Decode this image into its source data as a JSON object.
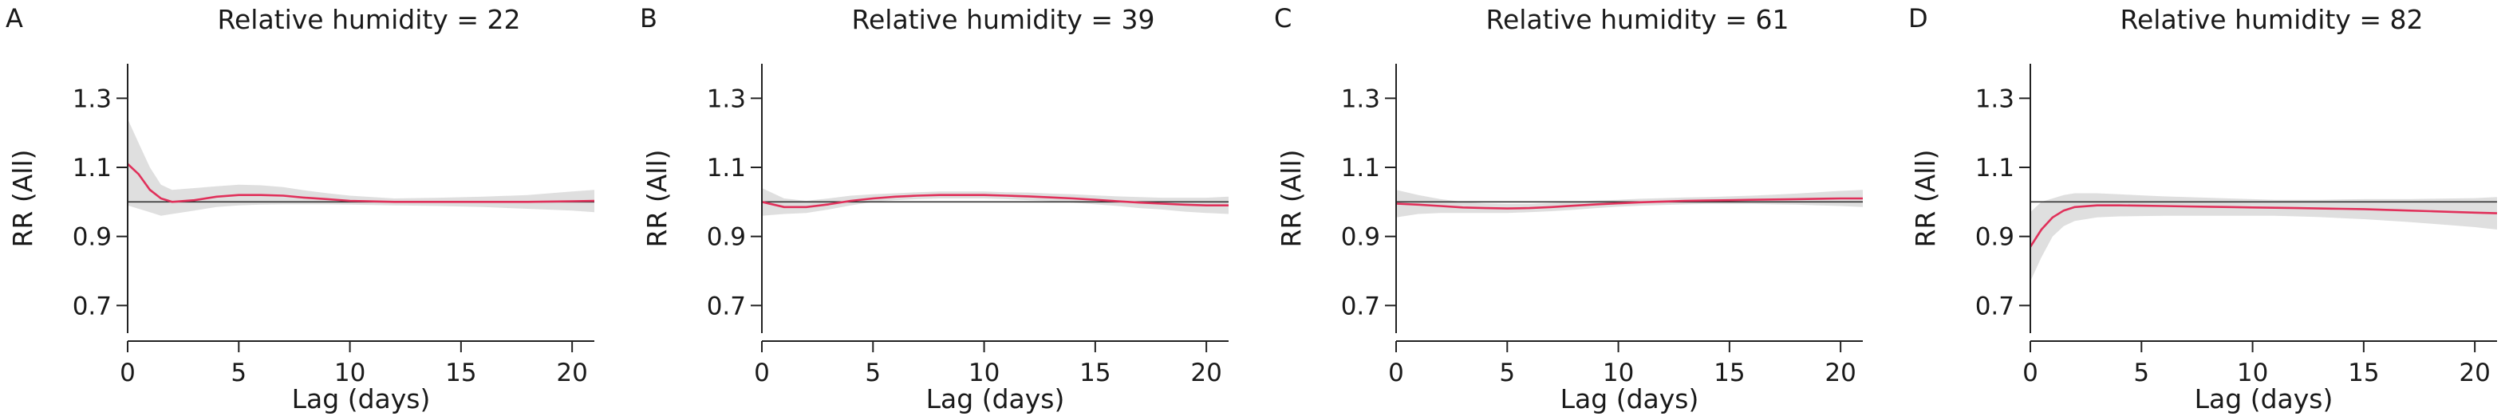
{
  "figure": {
    "background": "#ffffff",
    "band_color": "#d9d9d9",
    "line_color": "#e0305a",
    "reference_color": "#333333"
  },
  "chart_data": [
    {
      "type": "line",
      "panel_label": "A",
      "title": "Relative humidity = 22",
      "xlabel": "Lag (days)",
      "ylabel": "RR (All)",
      "xlim": [
        0,
        21
      ],
      "ylim": [
        0.62,
        1.4
      ],
      "xticks": [
        0,
        5,
        10,
        15,
        20
      ],
      "xtick_labels": [
        "0",
        "5",
        "10",
        "15",
        "20"
      ],
      "yticks": [
        0.7,
        0.9,
        1.1,
        1.3
      ],
      "ytick_labels": [
        "0.7",
        "0.9",
        "1.1",
        "1.3"
      ],
      "reference_line": 1.0,
      "series": [
        {
          "x": [
            0,
            0.5,
            1,
            1.5,
            2,
            3,
            4,
            5,
            6,
            7,
            8,
            9,
            10,
            12,
            14,
            16,
            18,
            20,
            21
          ],
          "y": [
            1.11,
            1.08,
            1.035,
            1.01,
            1.0,
            1.005,
            1.015,
            1.02,
            1.02,
            1.018,
            1.012,
            1.008,
            1.003,
            1.0,
            1.0,
            1.0,
            1.0,
            1.002,
            1.003
          ],
          "lower": [
            0.99,
            0.98,
            0.97,
            0.96,
            0.965,
            0.975,
            0.985,
            0.99,
            0.992,
            0.993,
            0.993,
            0.993,
            0.992,
            0.99,
            0.988,
            0.985,
            0.98,
            0.975,
            0.97
          ],
          "upper": [
            1.24,
            1.17,
            1.1,
            1.05,
            1.035,
            1.04,
            1.045,
            1.05,
            1.048,
            1.043,
            1.033,
            1.025,
            1.018,
            1.01,
            1.012,
            1.015,
            1.02,
            1.03,
            1.035
          ]
        }
      ]
    },
    {
      "type": "line",
      "panel_label": "B",
      "title": "Relative humidity = 39",
      "xlabel": "Lag (days)",
      "ylabel": "RR (All)",
      "xlim": [
        0,
        21
      ],
      "ylim": [
        0.62,
        1.4
      ],
      "xticks": [
        0,
        5,
        10,
        15,
        20
      ],
      "xtick_labels": [
        "0",
        "5",
        "10",
        "15",
        "20"
      ],
      "yticks": [
        0.7,
        0.9,
        1.1,
        1.3
      ],
      "ytick_labels": [
        "0.7",
        "0.9",
        "1.1",
        "1.3"
      ],
      "reference_line": 1.0,
      "series": [
        {
          "x": [
            0,
            1,
            2,
            3,
            4,
            5,
            6,
            7,
            8,
            9,
            10,
            11,
            12,
            13,
            14,
            15,
            16,
            17,
            18,
            19,
            20,
            21
          ],
          "y": [
            1.0,
            0.985,
            0.985,
            0.993,
            1.003,
            1.01,
            1.015,
            1.018,
            1.02,
            1.02,
            1.02,
            1.018,
            1.016,
            1.013,
            1.01,
            1.006,
            1.002,
            0.998,
            0.995,
            0.992,
            0.99,
            0.99
          ],
          "lower": [
            0.96,
            0.965,
            0.968,
            0.978,
            0.99,
            1.0,
            1.005,
            1.008,
            1.01,
            1.01,
            1.01,
            1.008,
            1.005,
            1.002,
            0.998,
            0.993,
            0.988,
            0.982,
            0.978,
            0.972,
            0.968,
            0.965
          ],
          "upper": [
            1.04,
            1.01,
            1.003,
            1.01,
            1.018,
            1.022,
            1.025,
            1.028,
            1.03,
            1.03,
            1.03,
            1.028,
            1.027,
            1.024,
            1.022,
            1.019,
            1.016,
            1.014,
            1.012,
            1.012,
            1.012,
            1.015
          ]
        }
      ]
    },
    {
      "type": "line",
      "panel_label": "C",
      "title": "Relative humidity = 61",
      "xlabel": "Lag (days)",
      "ylabel": "RR (All)",
      "xlim": [
        0,
        21
      ],
      "ylim": [
        0.62,
        1.4
      ],
      "xticks": [
        0,
        5,
        10,
        15,
        20
      ],
      "xtick_labels": [
        "0",
        "5",
        "10",
        "15",
        "20"
      ],
      "yticks": [
        0.7,
        0.9,
        1.1,
        1.3
      ],
      "ytick_labels": [
        "0.7",
        "0.9",
        "1.1",
        "1.3"
      ],
      "reference_line": 1.0,
      "series": [
        {
          "x": [
            0,
            1,
            2,
            3,
            4,
            5,
            6,
            7,
            8,
            9,
            10,
            11,
            12,
            13,
            14,
            15,
            16,
            17,
            18,
            19,
            20,
            21
          ],
          "y": [
            0.995,
            0.992,
            0.988,
            0.984,
            0.982,
            0.981,
            0.982,
            0.985,
            0.989,
            0.993,
            0.996,
            0.999,
            1.001,
            1.003,
            1.004,
            1.005,
            1.006,
            1.007,
            1.008,
            1.009,
            1.01,
            1.01
          ],
          "lower": [
            0.955,
            0.965,
            0.968,
            0.968,
            0.968,
            0.968,
            0.97,
            0.973,
            0.977,
            0.982,
            0.986,
            0.989,
            0.991,
            0.993,
            0.994,
            0.994,
            0.994,
            0.993,
            0.992,
            0.99,
            0.988,
            0.985
          ],
          "upper": [
            1.035,
            1.02,
            1.008,
            1.0,
            0.996,
            0.994,
            0.994,
            0.997,
            1.0,
            1.004,
            1.006,
            1.009,
            1.011,
            1.013,
            1.014,
            1.016,
            1.018,
            1.021,
            1.024,
            1.028,
            1.032,
            1.035
          ]
        }
      ]
    },
    {
      "type": "line",
      "panel_label": "D",
      "title": "Relative humidity = 82",
      "xlabel": "Lag (days)",
      "ylabel": "RR (All)",
      "xlim": [
        0,
        21
      ],
      "ylim": [
        0.62,
        1.4
      ],
      "xticks": [
        0,
        5,
        10,
        15,
        20
      ],
      "xtick_labels": [
        "0",
        "5",
        "10",
        "15",
        "20"
      ],
      "yticks": [
        0.7,
        0.9,
        1.1,
        1.3
      ],
      "ytick_labels": [
        "0.7",
        "0.9",
        "1.1",
        "1.3"
      ],
      "reference_line": 1.0,
      "series": [
        {
          "x": [
            0,
            0.5,
            1,
            1.5,
            2,
            3,
            4,
            5,
            6,
            7,
            8,
            9,
            10,
            11,
            12,
            13,
            14,
            15,
            16,
            17,
            18,
            19,
            20,
            21
          ],
          "y": [
            0.87,
            0.92,
            0.955,
            0.975,
            0.985,
            0.99,
            0.99,
            0.989,
            0.988,
            0.987,
            0.986,
            0.985,
            0.984,
            0.983,
            0.982,
            0.981,
            0.98,
            0.979,
            0.977,
            0.975,
            0.973,
            0.971,
            0.969,
            0.967
          ],
          "lower": [
            0.77,
            0.84,
            0.9,
            0.93,
            0.945,
            0.955,
            0.958,
            0.959,
            0.96,
            0.96,
            0.96,
            0.96,
            0.96,
            0.96,
            0.958,
            0.956,
            0.953,
            0.95,
            0.946,
            0.942,
            0.937,
            0.932,
            0.927,
            0.92
          ],
          "upper": [
            0.97,
            1.0,
            1.01,
            1.02,
            1.025,
            1.025,
            1.022,
            1.019,
            1.016,
            1.014,
            1.012,
            1.01,
            1.008,
            1.006,
            1.006,
            1.006,
            1.007,
            1.008,
            1.008,
            1.008,
            1.009,
            1.01,
            1.011,
            1.014
          ]
        }
      ]
    }
  ]
}
